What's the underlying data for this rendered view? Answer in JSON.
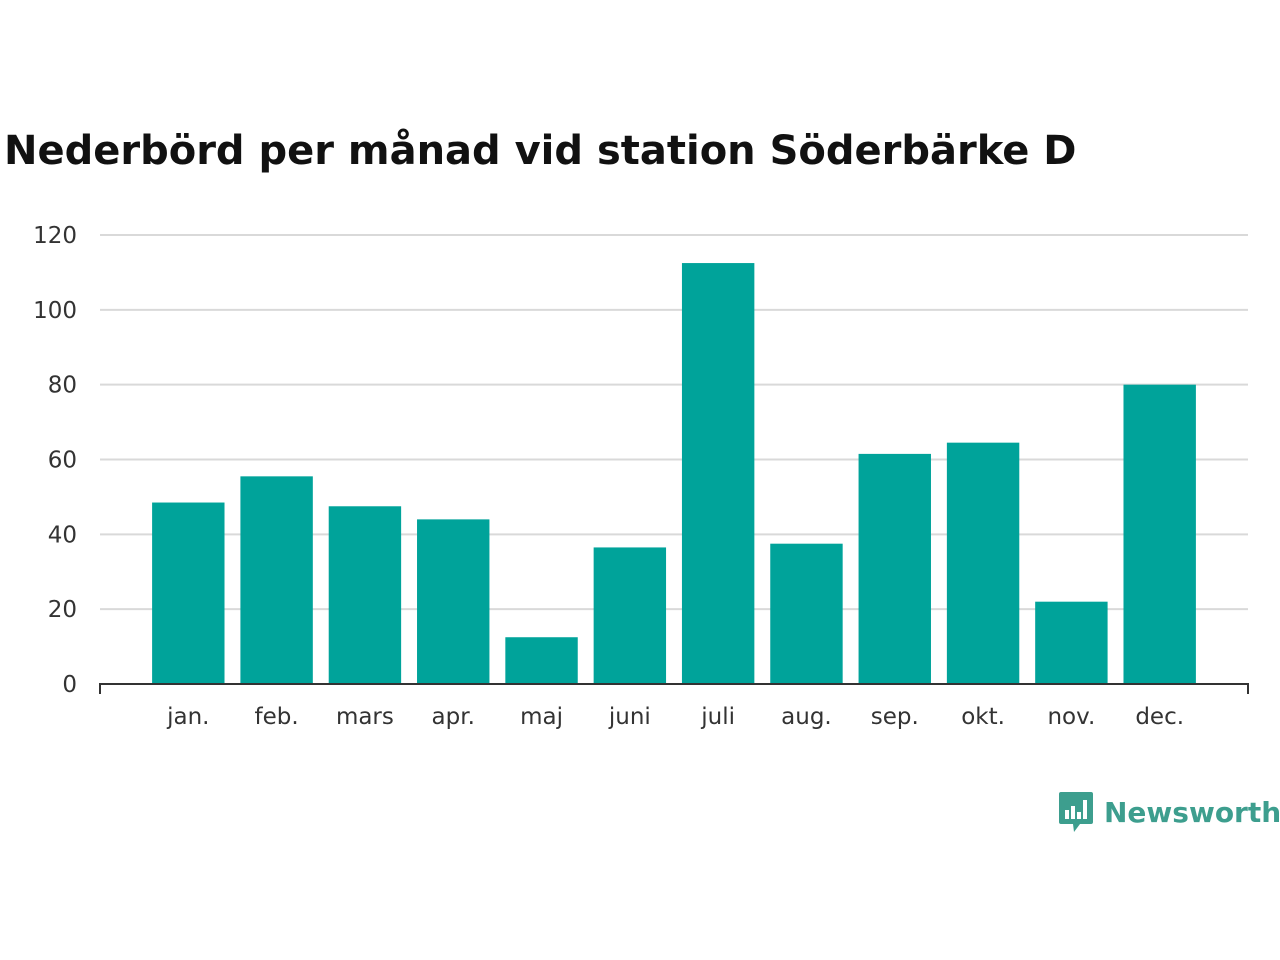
{
  "chart_data": {
    "type": "bar",
    "title": "Nederbörd per månad vid station Söderbärke D",
    "categories": [
      "jan.",
      "feb.",
      "mars",
      "apr.",
      "maj",
      "juni",
      "juli",
      "aug.",
      "sep.",
      "okt.",
      "nov.",
      "dec."
    ],
    "values": [
      48.5,
      55.5,
      47.5,
      44,
      12.5,
      36.5,
      112.5,
      37.5,
      61.5,
      64.5,
      22,
      80
    ],
    "ylim": [
      0,
      120
    ],
    "yticks": [
      0,
      20,
      40,
      60,
      80,
      100,
      120
    ],
    "grid": true,
    "bar_color": "#00a39a"
  },
  "brand": {
    "name": "Newsworthy",
    "icon": "chat-bar-chart-icon",
    "color": "#3d9e8e"
  }
}
